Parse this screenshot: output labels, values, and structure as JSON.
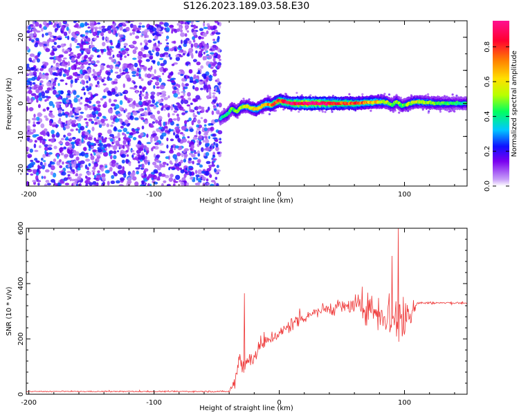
{
  "chart_data": [
    {
      "type": "heatmap",
      "title": "S126.2023.189.03.58.E30",
      "xlabel": "Height of straight line (km)",
      "ylabel": "Frequency (Hz)",
      "xlim": [
        -202,
        150
      ],
      "ylim": [
        -25,
        25
      ],
      "x_ticks": [
        -200,
        -100,
        0,
        100
      ],
      "y_ticks": [
        -20,
        -10,
        0,
        10,
        20
      ],
      "colorbar": {
        "label": "Normalized spectral amplitude",
        "range": [
          0,
          0.95
        ],
        "ticks": [
          0.0,
          0.2,
          0.4,
          0.6,
          0.8
        ],
        "colors": [
          "#ffffff",
          "#c8a0f8",
          "#7a00f0",
          "#1010ff",
          "#00c8ff",
          "#00ff60",
          "#b8ff00",
          "#ffe000",
          "#ff8000",
          "#ff0030",
          "#ff1090"
        ]
      },
      "noise_region": {
        "x": [
          -202,
          -47
        ],
        "amplitude_range": [
          0.05,
          0.3
        ]
      },
      "signal_ridge": {
        "x": [
          -47,
          -42,
          -38,
          -34,
          -30,
          -26,
          -22,
          -18,
          -14,
          -10,
          -6,
          -2,
          0,
          4,
          10,
          20,
          30,
          40,
          50,
          60,
          70,
          80,
          86,
          90,
          94,
          98,
          104,
          110,
          120,
          130,
          140,
          150
        ],
        "frequency": [
          -4.5,
          -3.5,
          -1.5,
          -2.5,
          -1.0,
          -0.8,
          -1.5,
          -1.8,
          -0.8,
          -0.2,
          -0.5,
          0.5,
          0.8,
          0.5,
          0.0,
          0.0,
          0.0,
          0.0,
          0.0,
          0.0,
          0.3,
          0.5,
          0.3,
          -0.5,
          0.5,
          -0.8,
          0.0,
          0.5,
          0.2,
          0.0,
          0.0,
          0.0
        ],
        "amplitude": [
          0.35,
          0.4,
          0.45,
          0.5,
          0.55,
          0.55,
          0.6,
          0.65,
          0.6,
          0.7,
          0.75,
          0.8,
          0.85,
          0.8,
          0.9,
          0.95,
          0.95,
          0.9,
          0.8,
          0.75,
          0.7,
          0.6,
          0.55,
          0.45,
          0.5,
          0.45,
          0.5,
          0.55,
          0.5,
          0.45,
          0.4,
          0.4
        ]
      }
    },
    {
      "type": "line",
      "xlabel": "Height of straight line (km)",
      "ylabel": "SNR (10 * v/v)",
      "xlim": [
        -202,
        150
      ],
      "ylim": [
        0,
        600
      ],
      "x_ticks": [
        -200,
        -100,
        0,
        100
      ],
      "y_ticks": [
        0,
        200,
        400,
        600
      ],
      "color": "#ee3333",
      "envelope": {
        "x": [
          -202,
          -40,
          -35,
          -32,
          -28,
          -25,
          -20,
          -15,
          -10,
          -5,
          0,
          5,
          10,
          20,
          30,
          40,
          50,
          60,
          70,
          80,
          85,
          90,
          95,
          100,
          105,
          108,
          110,
          120,
          130,
          140,
          150
        ],
        "mean": [
          10,
          10,
          50,
          150,
          100,
          120,
          140,
          170,
          190,
          210,
          215,
          235,
          255,
          280,
          300,
          310,
          315,
          320,
          310,
          300,
          290,
          270,
          260,
          270,
          300,
          320,
          330,
          330,
          330,
          330,
          330
        ],
        "spread": [
          3,
          5,
          60,
          110,
          80,
          60,
          55,
          50,
          45,
          40,
          40,
          50,
          50,
          45,
          40,
          45,
          50,
          70,
          90,
          130,
          160,
          190,
          200,
          170,
          130,
          60,
          10,
          8,
          8,
          8,
          8
        ]
      },
      "peaks": [
        {
          "x": -28,
          "y": 365
        },
        {
          "x": 95,
          "y": 600
        },
        {
          "x": 90,
          "y": 500
        }
      ]
    }
  ]
}
